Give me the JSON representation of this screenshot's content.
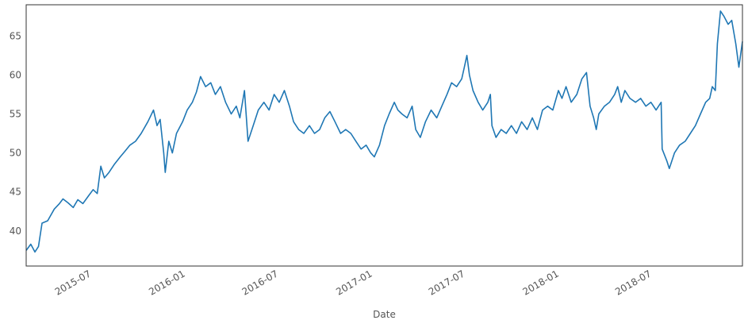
{
  "chart_data": {
    "type": "line",
    "title": "",
    "xlabel": "Date",
    "ylabel": "",
    "grid": false,
    "legend": "none",
    "xlim": [
      "2015-03-01",
      "2018-12-31"
    ],
    "ylim": [
      35.5,
      69.0
    ],
    "y_ticks": [
      40,
      45,
      50,
      55,
      60,
      65
    ],
    "x_ticks": [
      {
        "date": "2015-07-01",
        "label": "2015-07"
      },
      {
        "date": "2016-01-01",
        "label": "2016-01"
      },
      {
        "date": "2016-07-01",
        "label": "2016-07"
      },
      {
        "date": "2017-01-01",
        "label": "2017-01"
      },
      {
        "date": "2017-07-01",
        "label": "2017-07"
      },
      {
        "date": "2018-01-01",
        "label": "2018-01"
      },
      {
        "date": "2018-07-01",
        "label": "2018-07"
      }
    ],
    "series": [
      {
        "color": "#1f77b4",
        "points": [
          [
            "2015-03-01",
            37.5
          ],
          [
            "2015-03-10",
            38.3
          ],
          [
            "2015-03-18",
            37.3
          ],
          [
            "2015-03-25",
            38.0
          ],
          [
            "2015-04-01",
            41.0
          ],
          [
            "2015-04-12",
            41.3
          ],
          [
            "2015-04-25",
            42.8
          ],
          [
            "2015-05-05",
            43.5
          ],
          [
            "2015-05-12",
            44.1
          ],
          [
            "2015-05-22",
            43.6
          ],
          [
            "2015-06-01",
            43.0
          ],
          [
            "2015-06-10",
            44.0
          ],
          [
            "2015-06-20",
            43.5
          ],
          [
            "2015-07-01",
            44.5
          ],
          [
            "2015-07-10",
            45.3
          ],
          [
            "2015-07-18",
            44.8
          ],
          [
            "2015-07-25",
            48.3
          ],
          [
            "2015-08-01",
            46.8
          ],
          [
            "2015-08-10",
            47.5
          ],
          [
            "2015-08-20",
            48.5
          ],
          [
            "2015-09-01",
            49.5
          ],
          [
            "2015-09-10",
            50.2
          ],
          [
            "2015-09-20",
            51.0
          ],
          [
            "2015-10-01",
            51.5
          ],
          [
            "2015-10-12",
            52.5
          ],
          [
            "2015-10-25",
            54.0
          ],
          [
            "2015-11-05",
            55.5
          ],
          [
            "2015-11-12",
            53.5
          ],
          [
            "2015-11-18",
            54.3
          ],
          [
            "2015-11-25",
            50.0
          ],
          [
            "2015-11-28",
            47.5
          ],
          [
            "2015-12-05",
            51.5
          ],
          [
            "2015-12-12",
            50.0
          ],
          [
            "2015-12-20",
            52.5
          ],
          [
            "2016-01-01",
            54.0
          ],
          [
            "2016-01-10",
            55.5
          ],
          [
            "2016-01-20",
            56.5
          ],
          [
            "2016-01-28",
            57.8
          ],
          [
            "2016-02-05",
            59.8
          ],
          [
            "2016-02-15",
            58.5
          ],
          [
            "2016-02-25",
            59.0
          ],
          [
            "2016-03-05",
            57.5
          ],
          [
            "2016-03-15",
            58.5
          ],
          [
            "2016-03-25",
            56.5
          ],
          [
            "2016-04-05",
            55.0
          ],
          [
            "2016-04-15",
            56.0
          ],
          [
            "2016-04-22",
            54.5
          ],
          [
            "2016-05-01",
            58.0
          ],
          [
            "2016-05-08",
            51.5
          ],
          [
            "2016-05-18",
            53.5
          ],
          [
            "2016-05-28",
            55.5
          ],
          [
            "2016-06-08",
            56.5
          ],
          [
            "2016-06-18",
            55.5
          ],
          [
            "2016-06-28",
            57.5
          ],
          [
            "2016-07-08",
            56.5
          ],
          [
            "2016-07-18",
            58.0
          ],
          [
            "2016-07-28",
            56.0
          ],
          [
            "2016-08-05",
            54.0
          ],
          [
            "2016-08-15",
            53.0
          ],
          [
            "2016-08-25",
            52.5
          ],
          [
            "2016-09-05",
            53.5
          ],
          [
            "2016-09-15",
            52.5
          ],
          [
            "2016-09-25",
            53.0
          ],
          [
            "2016-10-05",
            54.5
          ],
          [
            "2016-10-15",
            55.3
          ],
          [
            "2016-10-25",
            54.0
          ],
          [
            "2016-11-05",
            52.5
          ],
          [
            "2016-11-15",
            53.0
          ],
          [
            "2016-11-25",
            52.5
          ],
          [
            "2016-12-05",
            51.5
          ],
          [
            "2016-12-15",
            50.5
          ],
          [
            "2016-12-25",
            51.0
          ],
          [
            "2017-01-03",
            50.0
          ],
          [
            "2017-01-10",
            49.5
          ],
          [
            "2017-01-20",
            51.0
          ],
          [
            "2017-01-30",
            53.5
          ],
          [
            "2017-02-08",
            55.0
          ],
          [
            "2017-02-18",
            56.5
          ],
          [
            "2017-02-25",
            55.5
          ],
          [
            "2017-03-05",
            55.0
          ],
          [
            "2017-03-15",
            54.5
          ],
          [
            "2017-03-25",
            56.0
          ],
          [
            "2017-04-01",
            53.0
          ],
          [
            "2017-04-10",
            52.0
          ],
          [
            "2017-04-20",
            54.0
          ],
          [
            "2017-05-01",
            55.5
          ],
          [
            "2017-05-12",
            54.5
          ],
          [
            "2017-05-22",
            56.0
          ],
          [
            "2017-06-01",
            57.5
          ],
          [
            "2017-06-10",
            59.0
          ],
          [
            "2017-06-20",
            58.5
          ],
          [
            "2017-06-30",
            59.5
          ],
          [
            "2017-07-05",
            61.0
          ],
          [
            "2017-07-10",
            62.5
          ],
          [
            "2017-07-15",
            60.0
          ],
          [
            "2017-07-22",
            58.0
          ],
          [
            "2017-08-01",
            56.5
          ],
          [
            "2017-08-10",
            55.5
          ],
          [
            "2017-08-20",
            56.5
          ],
          [
            "2017-08-25",
            57.5
          ],
          [
            "2017-08-28",
            53.5
          ],
          [
            "2017-09-05",
            52.0
          ],
          [
            "2017-09-15",
            53.0
          ],
          [
            "2017-09-25",
            52.5
          ],
          [
            "2017-10-05",
            53.5
          ],
          [
            "2017-10-15",
            52.5
          ],
          [
            "2017-10-25",
            54.0
          ],
          [
            "2017-11-05",
            53.0
          ],
          [
            "2017-11-15",
            54.5
          ],
          [
            "2017-11-25",
            53.0
          ],
          [
            "2017-12-05",
            55.5
          ],
          [
            "2017-12-15",
            56.0
          ],
          [
            "2017-12-25",
            55.5
          ],
          [
            "2018-01-05",
            58.0
          ],
          [
            "2018-01-12",
            57.0
          ],
          [
            "2018-01-20",
            58.5
          ],
          [
            "2018-01-30",
            56.5
          ],
          [
            "2018-02-10",
            57.5
          ],
          [
            "2018-02-20",
            59.5
          ],
          [
            "2018-03-01",
            60.3
          ],
          [
            "2018-03-08",
            56.0
          ],
          [
            "2018-03-15",
            54.5
          ],
          [
            "2018-03-20",
            53.0
          ],
          [
            "2018-03-25",
            55.0
          ],
          [
            "2018-04-05",
            56.0
          ],
          [
            "2018-04-15",
            56.5
          ],
          [
            "2018-04-25",
            57.5
          ],
          [
            "2018-05-01",
            58.5
          ],
          [
            "2018-05-08",
            56.5
          ],
          [
            "2018-05-15",
            58.0
          ],
          [
            "2018-05-25",
            57.0
          ],
          [
            "2018-06-05",
            56.5
          ],
          [
            "2018-06-15",
            57.0
          ],
          [
            "2018-06-25",
            56.0
          ],
          [
            "2018-07-05",
            56.5
          ],
          [
            "2018-07-15",
            55.5
          ],
          [
            "2018-07-25",
            56.5
          ],
          [
            "2018-07-27",
            50.5
          ],
          [
            "2018-08-05",
            49.0
          ],
          [
            "2018-08-10",
            48.0
          ],
          [
            "2018-08-20",
            50.0
          ],
          [
            "2018-08-30",
            51.0
          ],
          [
            "2018-09-10",
            51.5
          ],
          [
            "2018-09-20",
            52.5
          ],
          [
            "2018-09-30",
            53.5
          ],
          [
            "2018-10-10",
            55.0
          ],
          [
            "2018-10-20",
            56.5
          ],
          [
            "2018-10-28",
            57.0
          ],
          [
            "2018-11-02",
            58.5
          ],
          [
            "2018-11-08",
            58.0
          ],
          [
            "2018-11-12",
            64.0
          ],
          [
            "2018-11-18",
            68.2
          ],
          [
            "2018-11-25",
            67.5
          ],
          [
            "2018-12-03",
            66.5
          ],
          [
            "2018-12-10",
            67.0
          ],
          [
            "2018-12-18",
            64.0
          ],
          [
            "2018-12-24",
            61.0
          ],
          [
            "2018-12-31",
            64.3
          ]
        ]
      }
    ]
  }
}
